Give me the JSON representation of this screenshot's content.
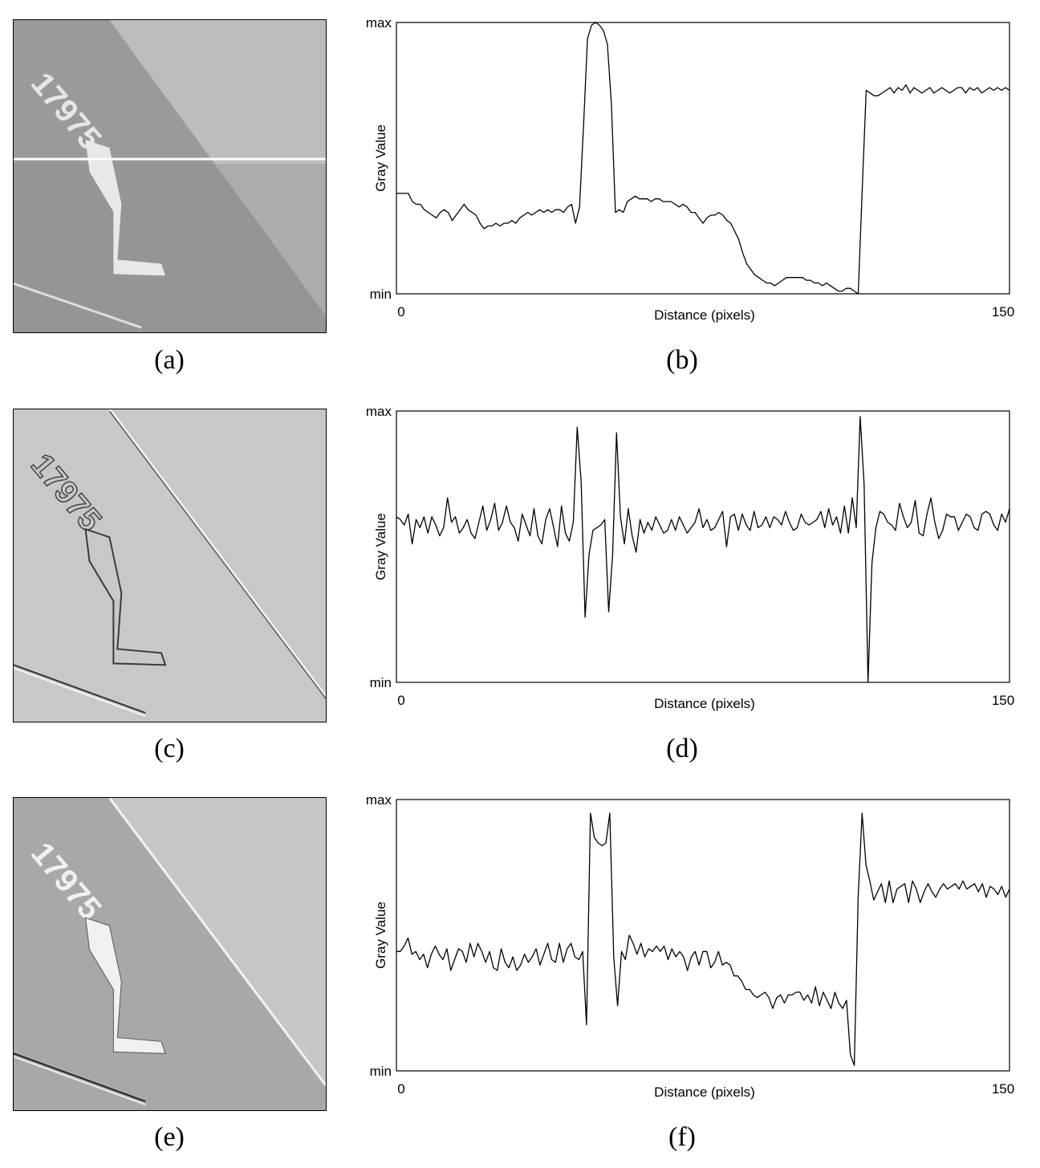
{
  "panels": [
    {
      "image_caption": "(a)",
      "plot_caption": "(b)",
      "style": "original"
    },
    {
      "image_caption": "(c)",
      "plot_caption": "(d)",
      "style": "highpass"
    },
    {
      "image_caption": "(e)",
      "plot_caption": "(f)",
      "style": "sharpened"
    }
  ],
  "image_text": "17975",
  "chart_data": [
    {
      "type": "line",
      "xlabel": "Distance (pixels)",
      "ylabel": "Gray Value",
      "x_ticks": [
        "0",
        "150"
      ],
      "y_ticks": [
        "min",
        "max"
      ],
      "xlim": [
        0,
        150
      ],
      "ylim": [
        0,
        1
      ],
      "values": [
        0.37,
        0.37,
        0.37,
        0.37,
        0.34,
        0.33,
        0.33,
        0.31,
        0.3,
        0.29,
        0.28,
        0.3,
        0.31,
        0.3,
        0.27,
        0.29,
        0.31,
        0.33,
        0.31,
        0.3,
        0.29,
        0.26,
        0.24,
        0.25,
        0.25,
        0.26,
        0.25,
        0.26,
        0.26,
        0.27,
        0.26,
        0.28,
        0.29,
        0.3,
        0.29,
        0.3,
        0.31,
        0.3,
        0.31,
        0.3,
        0.31,
        0.31,
        0.3,
        0.32,
        0.33,
        0.26,
        0.32,
        0.62,
        0.94,
        0.99,
        1.0,
        0.99,
        0.97,
        0.92,
        0.7,
        0.3,
        0.31,
        0.3,
        0.34,
        0.35,
        0.36,
        0.35,
        0.35,
        0.35,
        0.34,
        0.35,
        0.35,
        0.34,
        0.34,
        0.34,
        0.33,
        0.32,
        0.33,
        0.32,
        0.3,
        0.3,
        0.28,
        0.26,
        0.28,
        0.29,
        0.29,
        0.3,
        0.29,
        0.27,
        0.26,
        0.23,
        0.2,
        0.15,
        0.11,
        0.09,
        0.07,
        0.06,
        0.05,
        0.04,
        0.04,
        0.03,
        0.04,
        0.05,
        0.06,
        0.06,
        0.06,
        0.06,
        0.06,
        0.05,
        0.05,
        0.04,
        0.04,
        0.03,
        0.04,
        0.03,
        0.02,
        0.01,
        0.01,
        0.02,
        0.02,
        0.01,
        0.0,
        0.38,
        0.75,
        0.74,
        0.73,
        0.73,
        0.74,
        0.75,
        0.76,
        0.74,
        0.76,
        0.75,
        0.77,
        0.74,
        0.76,
        0.75,
        0.74,
        0.75,
        0.76,
        0.74,
        0.75,
        0.76,
        0.75,
        0.74,
        0.75,
        0.76,
        0.76,
        0.74,
        0.76,
        0.75,
        0.76,
        0.74,
        0.75,
        0.76,
        0.75,
        0.76,
        0.75,
        0.76,
        0.75
      ]
    },
    {
      "type": "line",
      "xlabel": "Distance (pixels)",
      "ylabel": "Gray Value",
      "x_ticks": [
        "0",
        "150"
      ],
      "y_ticks": [
        "min",
        "max"
      ],
      "xlim": [
        0,
        150
      ],
      "ylim": [
        0,
        1
      ],
      "values": [
        0.61,
        0.6,
        0.58,
        0.62,
        0.51,
        0.6,
        0.57,
        0.61,
        0.55,
        0.61,
        0.58,
        0.54,
        0.57,
        0.68,
        0.59,
        0.61,
        0.55,
        0.57,
        0.6,
        0.55,
        0.53,
        0.59,
        0.65,
        0.56,
        0.6,
        0.66,
        0.56,
        0.59,
        0.65,
        0.59,
        0.57,
        0.52,
        0.62,
        0.58,
        0.54,
        0.64,
        0.54,
        0.51,
        0.6,
        0.64,
        0.57,
        0.5,
        0.65,
        0.55,
        0.52,
        0.59,
        0.94,
        0.74,
        0.24,
        0.47,
        0.56,
        0.57,
        0.58,
        0.6,
        0.26,
        0.47,
        0.92,
        0.61,
        0.51,
        0.64,
        0.54,
        0.48,
        0.6,
        0.55,
        0.59,
        0.56,
        0.61,
        0.58,
        0.55,
        0.56,
        0.6,
        0.56,
        0.61,
        0.58,
        0.55,
        0.57,
        0.59,
        0.64,
        0.57,
        0.6,
        0.56,
        0.57,
        0.6,
        0.63,
        0.5,
        0.61,
        0.62,
        0.56,
        0.62,
        0.58,
        0.56,
        0.63,
        0.57,
        0.58,
        0.61,
        0.57,
        0.61,
        0.6,
        0.58,
        0.63,
        0.59,
        0.56,
        0.57,
        0.62,
        0.59,
        0.58,
        0.59,
        0.6,
        0.63,
        0.57,
        0.64,
        0.58,
        0.61,
        0.55,
        0.65,
        0.55,
        0.68,
        0.57,
        0.98,
        0.73,
        0.0,
        0.44,
        0.57,
        0.63,
        0.62,
        0.59,
        0.58,
        0.56,
        0.66,
        0.61,
        0.57,
        0.59,
        0.67,
        0.55,
        0.54,
        0.62,
        0.68,
        0.59,
        0.53,
        0.56,
        0.62,
        0.61,
        0.61,
        0.56,
        0.59,
        0.62,
        0.61,
        0.57,
        0.56,
        0.62,
        0.63,
        0.62,
        0.58,
        0.56,
        0.62,
        0.59,
        0.64
      ]
    },
    {
      "type": "line",
      "xlabel": "Distance (pixels)",
      "ylabel": "Gray Value",
      "x_ticks": [
        "0",
        "150"
      ],
      "y_ticks": [
        "min",
        "max"
      ],
      "xlim": [
        0,
        150
      ],
      "ylim": [
        0,
        1
      ],
      "values": [
        0.44,
        0.44,
        0.46,
        0.49,
        0.43,
        0.44,
        0.41,
        0.43,
        0.38,
        0.43,
        0.46,
        0.43,
        0.41,
        0.45,
        0.37,
        0.41,
        0.45,
        0.44,
        0.4,
        0.47,
        0.42,
        0.47,
        0.44,
        0.4,
        0.44,
        0.38,
        0.37,
        0.45,
        0.4,
        0.38,
        0.42,
        0.37,
        0.39,
        0.43,
        0.4,
        0.42,
        0.45,
        0.39,
        0.43,
        0.47,
        0.41,
        0.4,
        0.47,
        0.4,
        0.45,
        0.47,
        0.42,
        0.41,
        0.44,
        0.17,
        0.95,
        0.86,
        0.84,
        0.83,
        0.84,
        0.95,
        0.42,
        0.24,
        0.44,
        0.41,
        0.5,
        0.47,
        0.43,
        0.47,
        0.42,
        0.45,
        0.44,
        0.46,
        0.44,
        0.46,
        0.41,
        0.45,
        0.42,
        0.44,
        0.42,
        0.37,
        0.42,
        0.44,
        0.39,
        0.44,
        0.44,
        0.38,
        0.4,
        0.44,
        0.39,
        0.4,
        0.39,
        0.35,
        0.35,
        0.33,
        0.3,
        0.3,
        0.28,
        0.27,
        0.28,
        0.29,
        0.27,
        0.23,
        0.27,
        0.28,
        0.25,
        0.28,
        0.28,
        0.29,
        0.29,
        0.26,
        0.28,
        0.25,
        0.31,
        0.24,
        0.29,
        0.26,
        0.23,
        0.29,
        0.25,
        0.23,
        0.26,
        0.06,
        0.02,
        0.64,
        0.95,
        0.76,
        0.7,
        0.63,
        0.66,
        0.69,
        0.62,
        0.7,
        0.62,
        0.67,
        0.68,
        0.69,
        0.62,
        0.7,
        0.67,
        0.62,
        0.66,
        0.69,
        0.66,
        0.64,
        0.67,
        0.69,
        0.67,
        0.68,
        0.69,
        0.67,
        0.7,
        0.67,
        0.68,
        0.69,
        0.66,
        0.69,
        0.64,
        0.68,
        0.67,
        0.65,
        0.68,
        0.64,
        0.67
      ]
    }
  ]
}
